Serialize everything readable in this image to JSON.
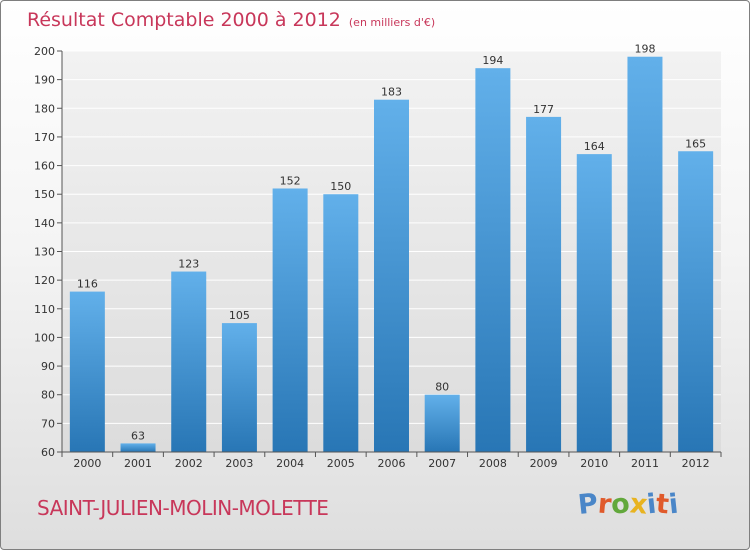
{
  "header": {
    "title": "Résultat Comptable 2000 à 2012",
    "subtitle": "(en milliers d'€)"
  },
  "footer": {
    "commune": "SAINT-JULIEN-MOLIN-MOLETTE",
    "logo": "Proxiti"
  },
  "colors": {
    "title": "#c8375a",
    "bar_top": "#62b0ea",
    "bar_bottom": "#2876b5",
    "logo_letters": [
      "#4a86c8",
      "#e05a2b",
      "#62a83c",
      "#e8b320",
      "#4a86c8",
      "#e05a2b",
      "#4a86c8"
    ]
  },
  "chart_data": {
    "type": "bar",
    "title": "Résultat Comptable 2000 à 2012",
    "subtitle": "(en milliers d'€)",
    "categories": [
      "2000",
      "2001",
      "2002",
      "2003",
      "2004",
      "2005",
      "2006",
      "2007",
      "2008",
      "2009",
      "2010",
      "2011",
      "2012"
    ],
    "values": [
      116,
      63,
      123,
      105,
      152,
      150,
      183,
      80,
      194,
      177,
      164,
      198,
      165
    ],
    "ylim": [
      60,
      200
    ],
    "yticks": [
      60,
      70,
      80,
      90,
      100,
      110,
      120,
      130,
      140,
      150,
      160,
      170,
      180,
      190,
      200
    ],
    "grid": true,
    "data_labels": true
  }
}
